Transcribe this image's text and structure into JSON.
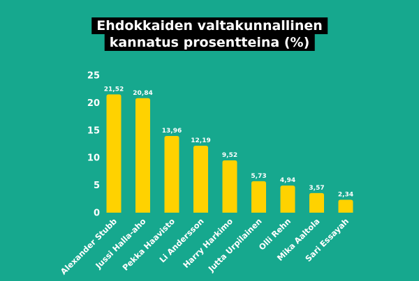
{
  "title_line1": "Ehdokkaiden valtakunnallinen",
  "title_line2": "kannatus prosentteina (%)",
  "colors": {
    "background": "#16a88e",
    "bar": "#ffd200",
    "text": "#ffffff",
    "title_bg": "#000000"
  },
  "chart_data": {
    "type": "bar",
    "title": "Ehdokkaiden valtakunnallinen kannatus prosentteina (%)",
    "categories": [
      "Alexander Stubb",
      "Jussi Halla-aho",
      "Pekka Haavisto",
      "Li Andersson",
      "Harry Harkimo",
      "Jutta Urpilainen",
      "Olli Rehn",
      "Mika Aaltola",
      "Sari Essayah"
    ],
    "values": [
      21.52,
      20.84,
      13.96,
      12.19,
      9.52,
      5.73,
      4.94,
      3.57,
      2.34
    ],
    "value_labels": [
      "21,52",
      "20,84",
      "13,96",
      "12,19",
      "9,52",
      "5,73",
      "4,94",
      "3,57",
      "2,34"
    ],
    "yticks": [
      0,
      5,
      10,
      15,
      20,
      25
    ],
    "ylim": [
      0,
      25
    ],
    "xlabel": "",
    "ylabel": "",
    "grid": false,
    "legend": "none"
  }
}
